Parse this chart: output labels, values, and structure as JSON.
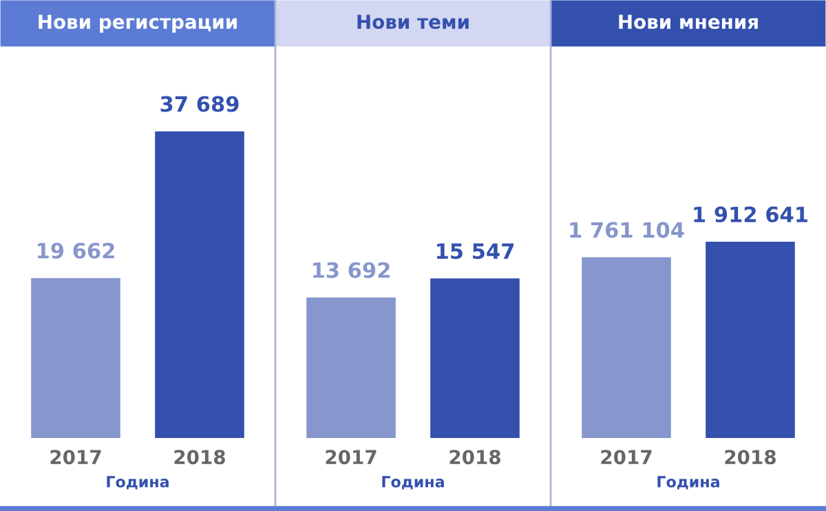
{
  "chart_data": [
    {
      "type": "bar",
      "title": "Нови регистрации",
      "xlabel": "Година",
      "categories": [
        "2017",
        "2018"
      ],
      "values": [
        19662,
        37689
      ],
      "colors": [
        "#8796cc",
        "#3350ad"
      ],
      "value_labels": [
        "19 662",
        "37 689"
      ],
      "legend": false,
      "grid": false
    },
    {
      "type": "bar",
      "title": "Нови теми",
      "xlabel": "Година",
      "categories": [
        "2017",
        "2018"
      ],
      "values": [
        13692,
        15547
      ],
      "colors": [
        "#8796cc",
        "#3350ad"
      ],
      "value_labels": [
        "13 692",
        "15 547"
      ],
      "legend": false,
      "grid": false
    },
    {
      "type": "bar",
      "title": "Нови мнения",
      "xlabel": "Година",
      "categories": [
        "2017",
        "2018"
      ],
      "values": [
        1761104,
        1912641
      ],
      "colors": [
        "#8796cc",
        "#3350ad"
      ],
      "value_labels": [
        "1 761 104",
        "1 912 641"
      ],
      "legend": false,
      "grid": false
    }
  ]
}
